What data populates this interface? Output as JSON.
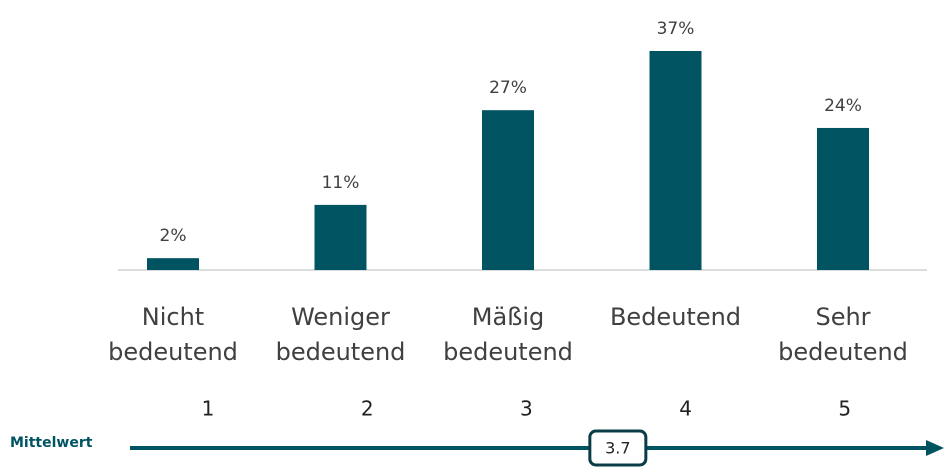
{
  "chart_data": {
    "type": "bar",
    "categories": [
      "Nicht bedeutend",
      "Weniger bedeutend",
      "Mäßig bedeutend",
      "Bedeutend",
      "Sehr bedeutend"
    ],
    "values": [
      2,
      11,
      27,
      37,
      24
    ],
    "value_labels": [
      "2%",
      "11%",
      "27%",
      "37%",
      "24%"
    ],
    "color": "#005461",
    "scale": {
      "labels": [
        1,
        2,
        3,
        4,
        5
      ],
      "mean_label": "Mittelwert",
      "mean": 3.7
    }
  }
}
